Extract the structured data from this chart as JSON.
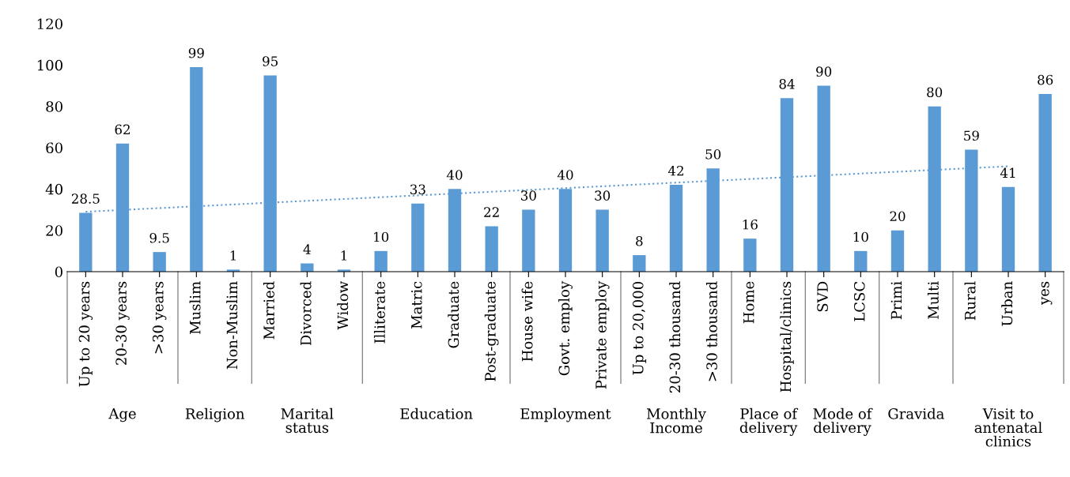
{
  "chart_data": {
    "type": "bar",
    "categories": [
      "Up to 20 years",
      "20-30 years",
      ">30 years",
      "Muslim",
      "Non-Muslim",
      "Married",
      "Divorced",
      "Widow",
      "Illiterate",
      "Matric",
      "Graduate",
      "Post-graduate",
      "House wife",
      "Govt. employ",
      "Private employ",
      "Up to 20,000",
      "20-30 thousand",
      ">30 thousand",
      "Home",
      "Hospital/clinics",
      "SVD",
      "LCSC",
      "Primi",
      "Multi",
      "Rural",
      "Urban",
      "yes"
    ],
    "series": [
      {
        "color": "#5b9bd5",
        "values": [
          28.5,
          62,
          9.5,
          99,
          1,
          95,
          4,
          1,
          10,
          33,
          40,
          22,
          30,
          40,
          30,
          8,
          42,
          50,
          16,
          84,
          90,
          10,
          20,
          80,
          59,
          41,
          86
        ],
        "value_labels": [
          "28.5",
          "62",
          "9.5",
          "99",
          "1",
          "95",
          "4",
          "1",
          "10",
          "33",
          "40",
          "22",
          "30",
          "40",
          "30",
          "8",
          "42",
          "50",
          "16",
          "84",
          "90",
          "10",
          "20",
          "80",
          "59",
          "41",
          "86"
        ]
      },
      {
        "type": "line",
        "color": "#5b9bd5",
        "line_style": "dotted",
        "marker": "none",
        "x": [
          "Up to 20 years",
          "Urban"
        ],
        "values": [
          29,
          51
        ]
      }
    ],
    "ylim": [
      0,
      120
    ],
    "yticks": [
      0,
      20,
      40,
      60,
      80,
      100,
      120
    ],
    "grid": false,
    "legend": false,
    "annotations": [
      "Age",
      "Religion",
      "Marital\nstatus",
      "Education",
      "Employment",
      "Monthly\nIncome",
      "Place of\ndelivery",
      "Mode of\ndelivery",
      "Gravida",
      "Visit to\nantenatal\nclinics"
    ]
  }
}
